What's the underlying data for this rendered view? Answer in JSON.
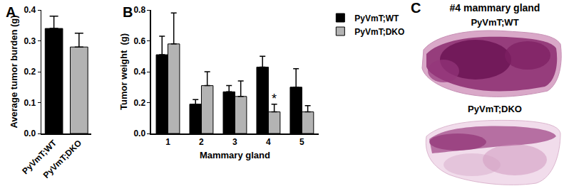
{
  "chart_data": [
    {
      "panel": "A",
      "type": "bar",
      "categories": [
        "PyVmT;WT",
        "PyVmT;DKO"
      ],
      "values": [
        0.34,
        0.28
      ],
      "errors": [
        0.04,
        0.045
      ],
      "colors": [
        "#000000",
        "#b3b3b3"
      ],
      "y_label": "Average tumor burden (g)",
      "ylim": [
        0,
        0.4
      ],
      "yticks": [
        {
          "value": 0,
          "label": "0.0"
        },
        0.1,
        0.2,
        0.3,
        0.4
      ],
      "grid": false
    },
    {
      "panel": "B",
      "type": "bar",
      "categories": [
        "1",
        "2",
        "3",
        "4",
        "5"
      ],
      "series": [
        {
          "name": "PyVmT;WT",
          "color": "#000000",
          "values": [
            0.51,
            0.19,
            0.27,
            0.43,
            0.3
          ],
          "errors": [
            0.12,
            0.03,
            0.04,
            0.07,
            0.12
          ]
        },
        {
          "name": "PyVmT;DKO",
          "color": "#b3b3b3",
          "values": [
            0.58,
            0.31,
            0.24,
            0.14,
            0.14
          ],
          "errors": [
            0.2,
            0.09,
            0.1,
            0.05,
            0.04
          ]
        }
      ],
      "x_label": "Mammary gland",
      "y_label": "Tumor weight  (g)",
      "ylim": [
        0,
        0.8
      ],
      "yticks": [
        {
          "value": 0,
          "label": "0.0"
        },
        0.2,
        0.4,
        0.6,
        0.8
      ],
      "grid": false,
      "legend": "top right",
      "annotations": [
        {
          "text": "*",
          "category": "4",
          "series": "PyVmT;DKO"
        }
      ]
    }
  ],
  "image_panel": {
    "panel": "C",
    "title": "#4 mammary gland",
    "labels": [
      "PyVmT;WT",
      "PyVmT;DKO"
    ]
  }
}
